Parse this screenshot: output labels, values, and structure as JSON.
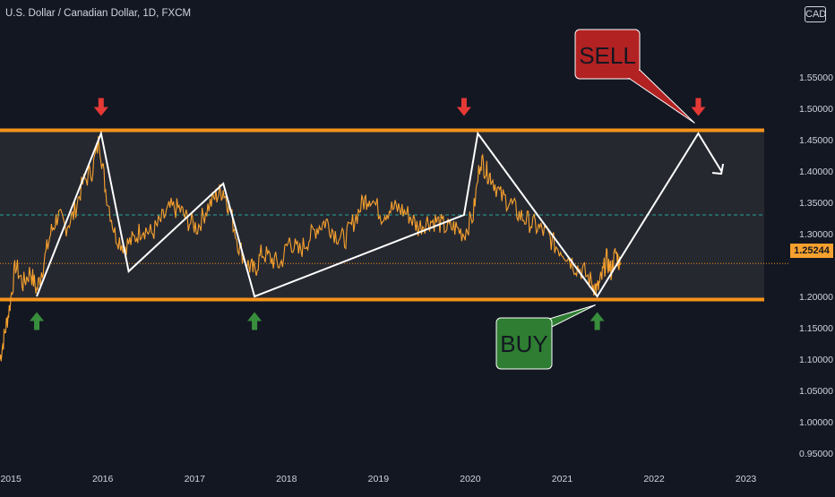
{
  "header": {
    "title": "U.S. Dollar / Canadian Dollar, 1D, FXCM",
    "currency": "CAD"
  },
  "last_price_label": "1.25244",
  "callouts": {
    "sell": "SELL",
    "buy": "BUY"
  },
  "colors": {
    "background": "#131722",
    "range_fill": "#2a2c33",
    "range_border": "#f7931a",
    "price_series": "#f7a12e",
    "zigzag": "#ffffff",
    "mid_line": "#26a69a",
    "last_price_line": "#f7931a",
    "sell_box": "#b22222",
    "buy_box": "#2e7d32",
    "down_arrow": "#e53935",
    "up_arrow": "#388e3c",
    "axis_text": "#d1d4dc"
  },
  "chart_data": {
    "type": "line",
    "title": "U.S. Dollar / Canadian Dollar, 1D, FXCM",
    "xlabel": "",
    "ylabel": "",
    "x_ticks": [
      "2015",
      "2016",
      "2017",
      "2018",
      "2019",
      "2020",
      "2021",
      "2022",
      "2023"
    ],
    "y_ticks": [
      "0.95000",
      "1.00000",
      "1.05000",
      "1.10000",
      "1.15000",
      "1.20000",
      "1.25244",
      "1.30000",
      "1.35000",
      "1.40000",
      "1.45000",
      "1.50000",
      "1.55000"
    ],
    "xlim": [
      2014.95,
      2023.55
    ],
    "ylim": [
      0.93,
      1.63
    ],
    "price_series": {
      "x": [
        2014.95,
        2015.0,
        2015.05,
        2015.12,
        2015.2,
        2015.28,
        2015.35,
        2015.42,
        2015.5,
        2015.58,
        2015.66,
        2015.75,
        2015.85,
        2015.95,
        2016.03,
        2016.1,
        2016.2,
        2016.3,
        2016.4,
        2016.5,
        2016.6,
        2016.7,
        2016.8,
        2016.9,
        2017.0,
        2017.1,
        2017.2,
        2017.3,
        2017.38,
        2017.45,
        2017.55,
        2017.65,
        2017.72,
        2017.8,
        2017.9,
        2018.0,
        2018.1,
        2018.2,
        2018.3,
        2018.4,
        2018.5,
        2018.6,
        2018.7,
        2018.8,
        2018.9,
        2018.98,
        2019.1,
        2019.2,
        2019.3,
        2019.4,
        2019.5,
        2019.6,
        2019.7,
        2019.8,
        2019.9,
        2020.0,
        2020.1,
        2020.18,
        2020.24,
        2020.3,
        2020.4,
        2020.5,
        2020.6,
        2020.7,
        2020.8,
        2020.9,
        2021.0,
        2021.1,
        2021.2,
        2021.3,
        2021.4,
        2021.45,
        2021.5,
        2021.55,
        2021.6,
        2021.65,
        2021.7
      ],
      "y": [
        1.1,
        1.14,
        1.18,
        1.25,
        1.22,
        1.24,
        1.21,
        1.25,
        1.3,
        1.33,
        1.31,
        1.33,
        1.38,
        1.4,
        1.45,
        1.37,
        1.3,
        1.28,
        1.29,
        1.31,
        1.3,
        1.32,
        1.34,
        1.34,
        1.32,
        1.31,
        1.34,
        1.36,
        1.37,
        1.34,
        1.28,
        1.25,
        1.24,
        1.27,
        1.26,
        1.25,
        1.29,
        1.27,
        1.29,
        1.31,
        1.32,
        1.3,
        1.29,
        1.32,
        1.35,
        1.36,
        1.33,
        1.34,
        1.34,
        1.33,
        1.31,
        1.32,
        1.32,
        1.31,
        1.31,
        1.3,
        1.33,
        1.42,
        1.4,
        1.39,
        1.36,
        1.35,
        1.33,
        1.32,
        1.31,
        1.3,
        1.28,
        1.27,
        1.25,
        1.24,
        1.22,
        1.21,
        1.23,
        1.26,
        1.24,
        1.27,
        1.25
      ]
    },
    "zigzag": {
      "x": [
        2015.35,
        2016.05,
        2016.35,
        2017.38,
        2017.72,
        2020.0,
        2020.15,
        2021.45,
        2021.7,
        2022.55,
        2022.8
      ],
      "y": [
        1.2,
        1.46,
        1.24,
        1.38,
        1.2,
        1.33,
        1.46,
        1.2,
        1.26,
        1.46,
        1.4
      ]
    },
    "range": {
      "top": 1.465,
      "bottom": 1.195
    },
    "mid_line": 1.33,
    "last_price": 1.25244,
    "sell_markers_x": [
      2016.05,
      2020.0,
      2022.55
    ],
    "buy_markers_x": [
      2015.35,
      2017.72,
      2021.45
    ],
    "grid": false,
    "legend": "none"
  }
}
